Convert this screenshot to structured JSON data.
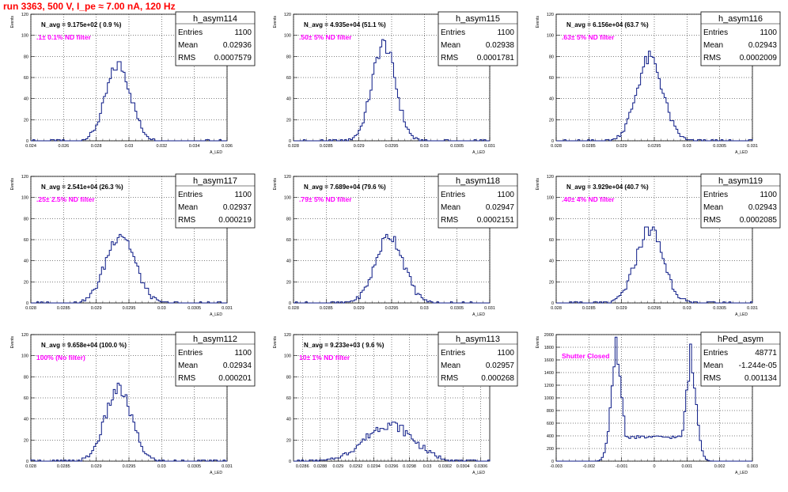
{
  "title": "run 3363,   500 V, I_pe ≈ 7.00 nA, 120 Hz",
  "y_axis_label": "Events",
  "x_axis_label": "A_LED",
  "stat_labels": {
    "entries": "Entries",
    "mean": "Mean",
    "rms": "RMS"
  },
  "chart_data": [
    {
      "type": "histogram",
      "name": "h_asym114",
      "navg": "N_avg = 9.175e+02 ( 0.9 %)",
      "filter": ".1± 0.1% ND filter",
      "entries": "1100",
      "mean": "0.02936",
      "rms": "0.0007579",
      "xlim": [
        0.024,
        0.036
      ],
      "ylim": [
        0,
        120
      ],
      "xticks": [
        0.024,
        0.026,
        0.028,
        0.03,
        0.032,
        0.034,
        0.036
      ],
      "xtick_labels": [
        "0.024",
        "0.026",
        "0.028",
        "0.03",
        "0.032",
        "0.034",
        "0.036"
      ],
      "yticks": [
        0,
        20,
        40,
        60,
        80,
        100,
        120
      ],
      "ytick_labels": [
        "0",
        "20",
        "40",
        "60",
        "80",
        "100",
        "120"
      ],
      "grid": true,
      "center": 0.02936,
      "sigma": 0.00076,
      "peak": 72
    },
    {
      "type": "histogram",
      "name": "h_asym115",
      "navg": "N_avg = 4.935e+04 (51.1 %)",
      "filter": ".50± 5% ND filter",
      "entries": "1100",
      "mean": "0.02938",
      "rms": "0.0001781",
      "xlim": [
        0.028,
        0.031
      ],
      "ylim": [
        0,
        120
      ],
      "xticks": [
        0.028,
        0.0285,
        0.029,
        0.0295,
        0.03,
        0.0305,
        0.031
      ],
      "xtick_labels": [
        "0.028",
        "0.0285",
        "0.029",
        "0.0295",
        "0.03",
        "0.0305",
        "0.031"
      ],
      "yticks": [
        0,
        20,
        40,
        60,
        80,
        100,
        120
      ],
      "ytick_labels": [
        "0",
        "20",
        "40",
        "60",
        "80",
        "100",
        "120"
      ],
      "grid": true,
      "center": 0.02938,
      "sigma": 0.000178,
      "peak": 92
    },
    {
      "type": "histogram",
      "name": "h_asym116",
      "navg": "N_avg = 6.156e+04 (63.7 %)",
      "filter": ".63± 5% ND filter",
      "entries": "1100",
      "mean": "0.02943",
      "rms": "0.0002009",
      "xlim": [
        0.028,
        0.031
      ],
      "ylim": [
        0,
        120
      ],
      "xticks": [
        0.028,
        0.0285,
        0.029,
        0.0295,
        0.03,
        0.0305,
        0.031
      ],
      "xtick_labels": [
        "0.028",
        "0.0285",
        "0.029",
        "0.0295",
        "0.03",
        "0.0305",
        "0.031"
      ],
      "yticks": [
        0,
        20,
        40,
        60,
        80,
        100,
        120
      ],
      "ytick_labels": [
        "0",
        "20",
        "40",
        "60",
        "80",
        "100",
        "120"
      ],
      "grid": true,
      "center": 0.02943,
      "sigma": 0.0002,
      "peak": 78
    },
    {
      "type": "histogram",
      "name": "h_asym117",
      "navg": "N_avg = 2.541e+04 (26.3 %)",
      "filter": ".25± 2.5% ND filter",
      "entries": "1100",
      "mean": "0.02937",
      "rms": "0.000219",
      "xlim": [
        0.028,
        0.031
      ],
      "ylim": [
        0,
        120
      ],
      "xticks": [
        0.028,
        0.0285,
        0.029,
        0.0295,
        0.03,
        0.0305,
        0.031
      ],
      "xtick_labels": [
        "0.028",
        "0.0285",
        "0.029",
        "0.0295",
        "0.03",
        "0.0305",
        "0.031"
      ],
      "yticks": [
        0,
        20,
        40,
        60,
        80,
        100,
        120
      ],
      "ytick_labels": [
        "0",
        "20",
        "40",
        "60",
        "80",
        "100",
        "120"
      ],
      "grid": true,
      "center": 0.02937,
      "sigma": 0.000219,
      "peak": 66
    },
    {
      "type": "histogram",
      "name": "h_asym118",
      "navg": "N_avg = 7.689e+04 (79.6 %)",
      "filter": ".79± 5% ND filter",
      "entries": "1100",
      "mean": "0.02947",
      "rms": "0.0002151",
      "xlim": [
        0.028,
        0.031
      ],
      "ylim": [
        0,
        120
      ],
      "xticks": [
        0.028,
        0.0285,
        0.029,
        0.0295,
        0.03,
        0.0305,
        0.031
      ],
      "xtick_labels": [
        "0.028",
        "0.0285",
        "0.029",
        "0.0295",
        "0.03",
        "0.0305",
        "0.031"
      ],
      "yticks": [
        0,
        20,
        40,
        60,
        80,
        100,
        120
      ],
      "ytick_labels": [
        "0",
        "20",
        "40",
        "60",
        "80",
        "100",
        "120"
      ],
      "grid": true,
      "center": 0.02947,
      "sigma": 0.000215,
      "peak": 64
    },
    {
      "type": "histogram",
      "name": "h_asym119",
      "navg": "N_avg = 3.929e+04 (40.7 %)",
      "filter": ".40± 4% ND filter",
      "entries": "1100",
      "mean": "0.02943",
      "rms": "0.0002085",
      "xlim": [
        0.028,
        0.031
      ],
      "ylim": [
        0,
        120
      ],
      "xticks": [
        0.028,
        0.0285,
        0.029,
        0.0295,
        0.03,
        0.0305,
        0.031
      ],
      "xtick_labels": [
        "0.028",
        "0.0285",
        "0.029",
        "0.0295",
        "0.03",
        "0.0305",
        "0.031"
      ],
      "yticks": [
        0,
        20,
        40,
        60,
        80,
        100,
        120
      ],
      "ytick_labels": [
        "0",
        "20",
        "40",
        "60",
        "80",
        "100",
        "120"
      ],
      "grid": true,
      "center": 0.02943,
      "sigma": 0.000208,
      "peak": 70
    },
    {
      "type": "histogram",
      "name": "h_asym112",
      "navg": "N_avg = 9.658e+04 (100.0 %)",
      "filter": "100% (No filter)",
      "entries": "1100",
      "mean": "0.02934",
      "rms": "0.000201",
      "xlim": [
        0.028,
        0.031
      ],
      "ylim": [
        0,
        120
      ],
      "xticks": [
        0.028,
        0.0285,
        0.029,
        0.0295,
        0.03,
        0.0305,
        0.031
      ],
      "xtick_labels": [
        "0.028",
        "0.0285",
        "0.029",
        "0.0295",
        "0.03",
        "0.0305",
        "0.031"
      ],
      "yticks": [
        0,
        20,
        40,
        60,
        80,
        100,
        120
      ],
      "ytick_labels": [
        "0",
        "20",
        "40",
        "60",
        "80",
        "100",
        "120"
      ],
      "grid": true,
      "center": 0.02934,
      "sigma": 0.000201,
      "peak": 68
    },
    {
      "type": "histogram",
      "name": "h_asym113",
      "navg": "N_avg = 9.233e+03 ( 9.6 %)",
      "filter": "10± 1% ND filter",
      "entries": "1100",
      "mean": "0.02957",
      "rms": "0.000268",
      "xlim": [
        0.0285,
        0.0307
      ],
      "ylim": [
        0,
        120
      ],
      "xticks": [
        0.0286,
        0.0288,
        0.029,
        0.0292,
        0.0294,
        0.0296,
        0.0298,
        0.03,
        0.0302,
        0.0304,
        0.0306
      ],
      "xtick_labels": [
        "0.0286",
        "0.0288",
        "0.029",
        "0.0292",
        "0.0294",
        "0.0296",
        "0.0298",
        "0.03",
        "0.0302",
        "0.0304",
        "0.0306"
      ],
      "yticks": [
        0,
        20,
        40,
        60,
        80,
        100,
        120
      ],
      "ytick_labels": [
        "0",
        "20",
        "40",
        "60",
        "80",
        "100",
        "120"
      ],
      "grid": true,
      "center": 0.02957,
      "sigma": 0.000268,
      "peak": 35
    },
    {
      "type": "histogram",
      "name": "hPed_asym",
      "navg": "",
      "filter": "Shutter Closed",
      "entries": "48771",
      "mean": "-1.244e-05",
      "rms": "0.001134",
      "xlim": [
        -0.003,
        0.003
      ],
      "ylim": [
        0,
        2000
      ],
      "xticks": [
        -0.003,
        -0.002,
        -0.001,
        0,
        0.001,
        0.002,
        0.003
      ],
      "xtick_labels": [
        "-0.003",
        "-0.002",
        "-0.001",
        "0",
        "0.001",
        "0.002",
        "0.003"
      ],
      "yticks": [
        0,
        200,
        400,
        600,
        800,
        1000,
        1200,
        1400,
        1600,
        1800,
        2000
      ],
      "ytick_labels": [
        "0",
        "200",
        "400",
        "600",
        "800",
        "1000",
        "1200",
        "1400",
        "1600",
        "1800",
        "2000"
      ],
      "grid": true,
      "peaks": [
        {
          "center": -0.00115,
          "sigma": 0.00017,
          "height": 1600
        },
        {
          "center": 0.00112,
          "sigma": 0.00017,
          "height": 1450
        }
      ],
      "plateau": 380,
      "plateau_range": [
        -0.00115,
        0.00112
      ],
      "peak_heights": [
        1960,
        1850
      ]
    }
  ]
}
